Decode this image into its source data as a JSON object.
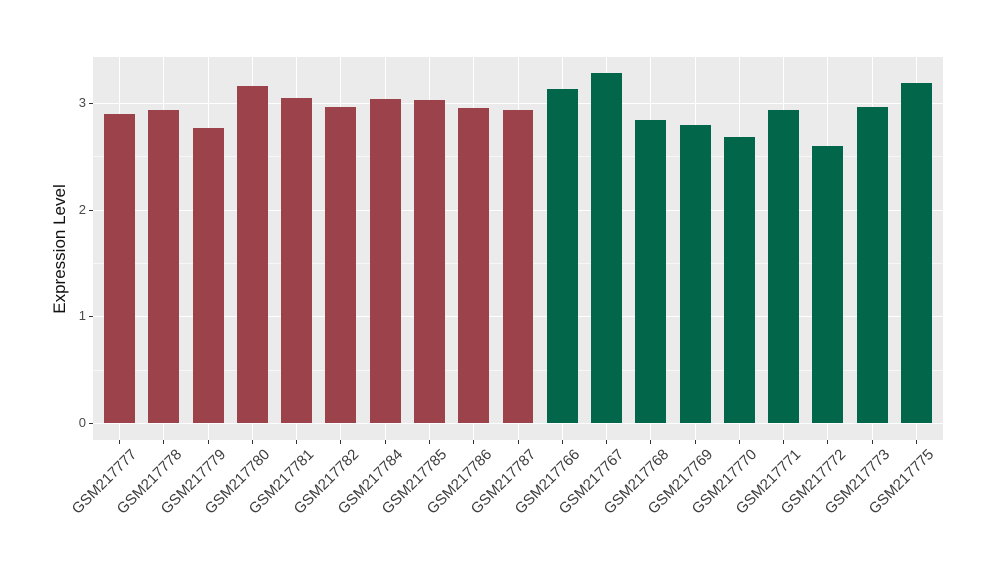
{
  "chart_data": {
    "type": "bar",
    "title": "",
    "xlabel": "",
    "ylabel": "Expression Level",
    "legend": "none",
    "grid": true,
    "categories": [
      "GSM217777",
      "GSM217778",
      "GSM217779",
      "GSM217780",
      "GSM217781",
      "GSM217782",
      "GSM217784",
      "GSM217785",
      "GSM217786",
      "GSM217787",
      "GSM217766",
      "GSM217767",
      "GSM217768",
      "GSM217769",
      "GSM217770",
      "GSM217771",
      "GSM217772",
      "GSM217773",
      "GSM217775"
    ],
    "values": [
      2.9,
      2.93,
      2.76,
      3.16,
      3.05,
      2.96,
      3.04,
      3.03,
      2.95,
      2.93,
      3.13,
      3.28,
      2.84,
      2.79,
      2.68,
      2.93,
      2.6,
      2.96,
      3.19
    ],
    "groups": [
      "group1",
      "group1",
      "group1",
      "group1",
      "group1",
      "group1",
      "group1",
      "group1",
      "group1",
      "group1",
      "group2",
      "group2",
      "group2",
      "group2",
      "group2",
      "group2",
      "group2",
      "group2",
      "group2"
    ],
    "group_colors": {
      "group1": "#9C424A",
      "group2": "#02664A"
    },
    "yticks": [
      0,
      1,
      2,
      3
    ],
    "yminor": [
      0.5,
      1.5,
      2.5
    ],
    "ylim": [
      -0.16,
      3.43
    ],
    "panel_bg": "#EBEBEB",
    "grid_color": "#FFFFFF",
    "bar_width_ratio": 0.7
  }
}
